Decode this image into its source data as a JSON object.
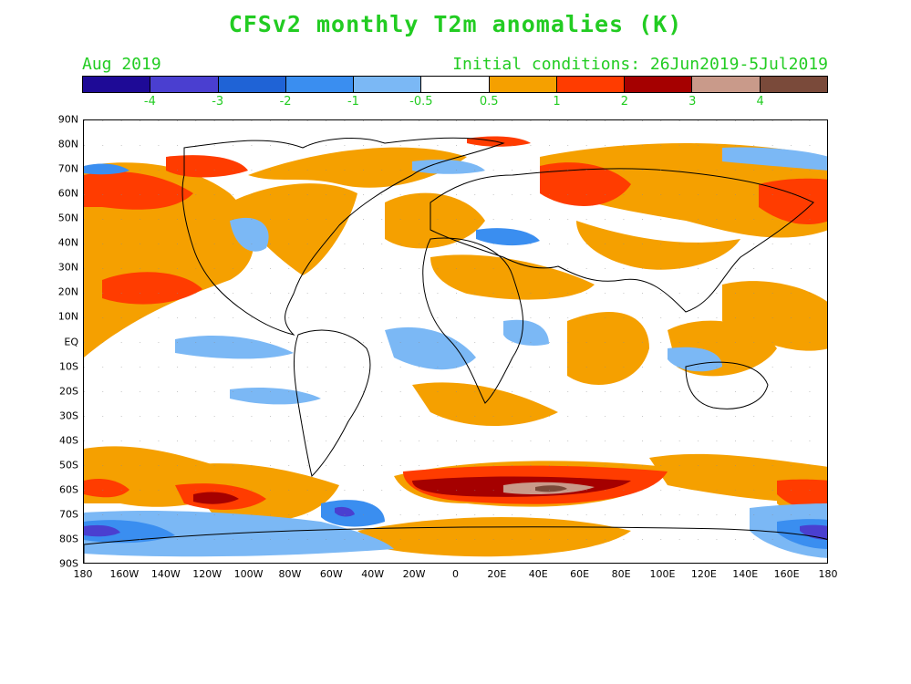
{
  "title": "CFSv2 monthly T2m anomalies (K)",
  "valid_month": "Aug 2019",
  "initial_conditions": "Initial conditions: 26Jun2019-5Jul2019",
  "colorbar": {
    "colors": [
      "#1e0a96",
      "#4a3fd0",
      "#1f63d6",
      "#3a8ef0",
      "#7bb8f5",
      "#ffffff",
      "#f5a000",
      "#ff3c00",
      "#a50000",
      "#c99a8a",
      "#7a4a3a"
    ],
    "labels": [
      "-4",
      "-3",
      "-2",
      "-1",
      "-0.5",
      "0.5",
      "1",
      "2",
      "3",
      "4"
    ]
  },
  "map": {
    "projection": "cylindrical equidistant",
    "lat_labels": [
      "90N",
      "80N",
      "70N",
      "60N",
      "50N",
      "40N",
      "30N",
      "20N",
      "10N",
      "EQ",
      "10S",
      "20S",
      "30S",
      "40S",
      "50S",
      "60S",
      "70S",
      "80S",
      "90S"
    ],
    "lon_labels": [
      "180",
      "160W",
      "140W",
      "120W",
      "100W",
      "80W",
      "60W",
      "40W",
      "20W",
      "0",
      "20E",
      "40E",
      "60E",
      "80E",
      "100E",
      "120E",
      "140E",
      "160E",
      "180"
    ],
    "gridlines": "dotted"
  }
}
